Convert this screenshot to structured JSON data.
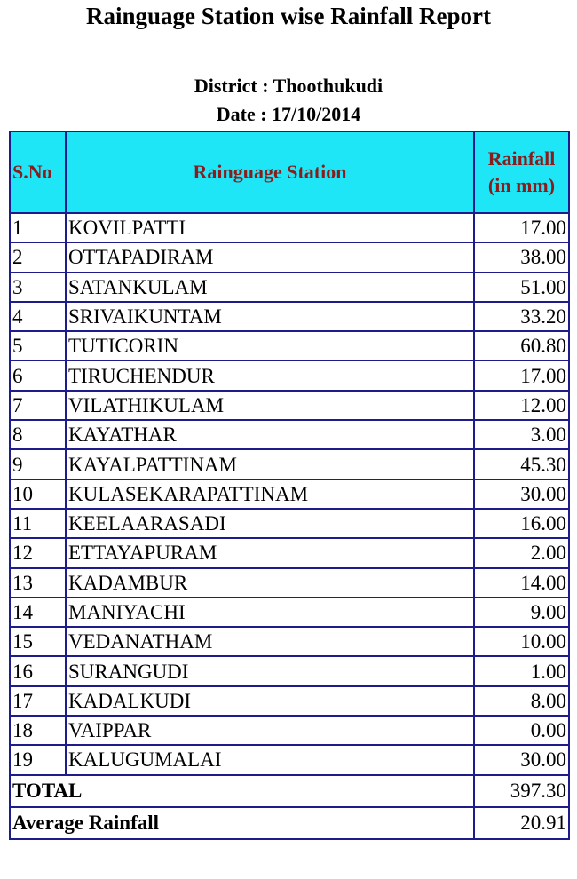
{
  "header": {
    "title": "Rainguage Station wise Rainfall Report",
    "district": "District : Thoothukudi",
    "date": "Date : 17/10/2014"
  },
  "table": {
    "columns": [
      "S.No",
      "Rainguage Station",
      "Rainfall (in mm)"
    ],
    "rows": [
      [
        "1",
        "KOVILPATTI",
        "17.00"
      ],
      [
        "2",
        "OTTAPADIRAM",
        "38.00"
      ],
      [
        "3",
        "SATANKULAM",
        "51.00"
      ],
      [
        "4",
        "SRIVAIKUNTAM",
        "33.20"
      ],
      [
        "5",
        "TUTICORIN",
        "60.80"
      ],
      [
        "6",
        "TIRUCHENDUR",
        "17.00"
      ],
      [
        "7",
        "VILATHIKULAM",
        "12.00"
      ],
      [
        "8",
        "KAYATHAR",
        "3.00"
      ],
      [
        "9",
        "KAYALPATTINAM",
        "45.30"
      ],
      [
        "10",
        "KULASEKARAPATTINAM",
        "30.00"
      ],
      [
        "11",
        "KEELAARASADI",
        "16.00"
      ],
      [
        "12",
        "ETTAYAPURAM",
        "2.00"
      ],
      [
        "13",
        "KADAMBUR",
        "14.00"
      ],
      [
        "14",
        "MANIYACHI",
        "9.00"
      ],
      [
        "15",
        "VEDANATHAM",
        "10.00"
      ],
      [
        "16",
        "SURANGUDI",
        "1.00"
      ],
      [
        "17",
        "KADALKUDI",
        "8.00"
      ],
      [
        "18",
        "VAIPPAR",
        "0.00"
      ],
      [
        "19",
        "KALUGUMALAI",
        "30.00"
      ]
    ],
    "footer": [
      [
        "TOTAL",
        "397.30"
      ],
      [
        "Average Rainfall",
        "20.91"
      ]
    ]
  }
}
